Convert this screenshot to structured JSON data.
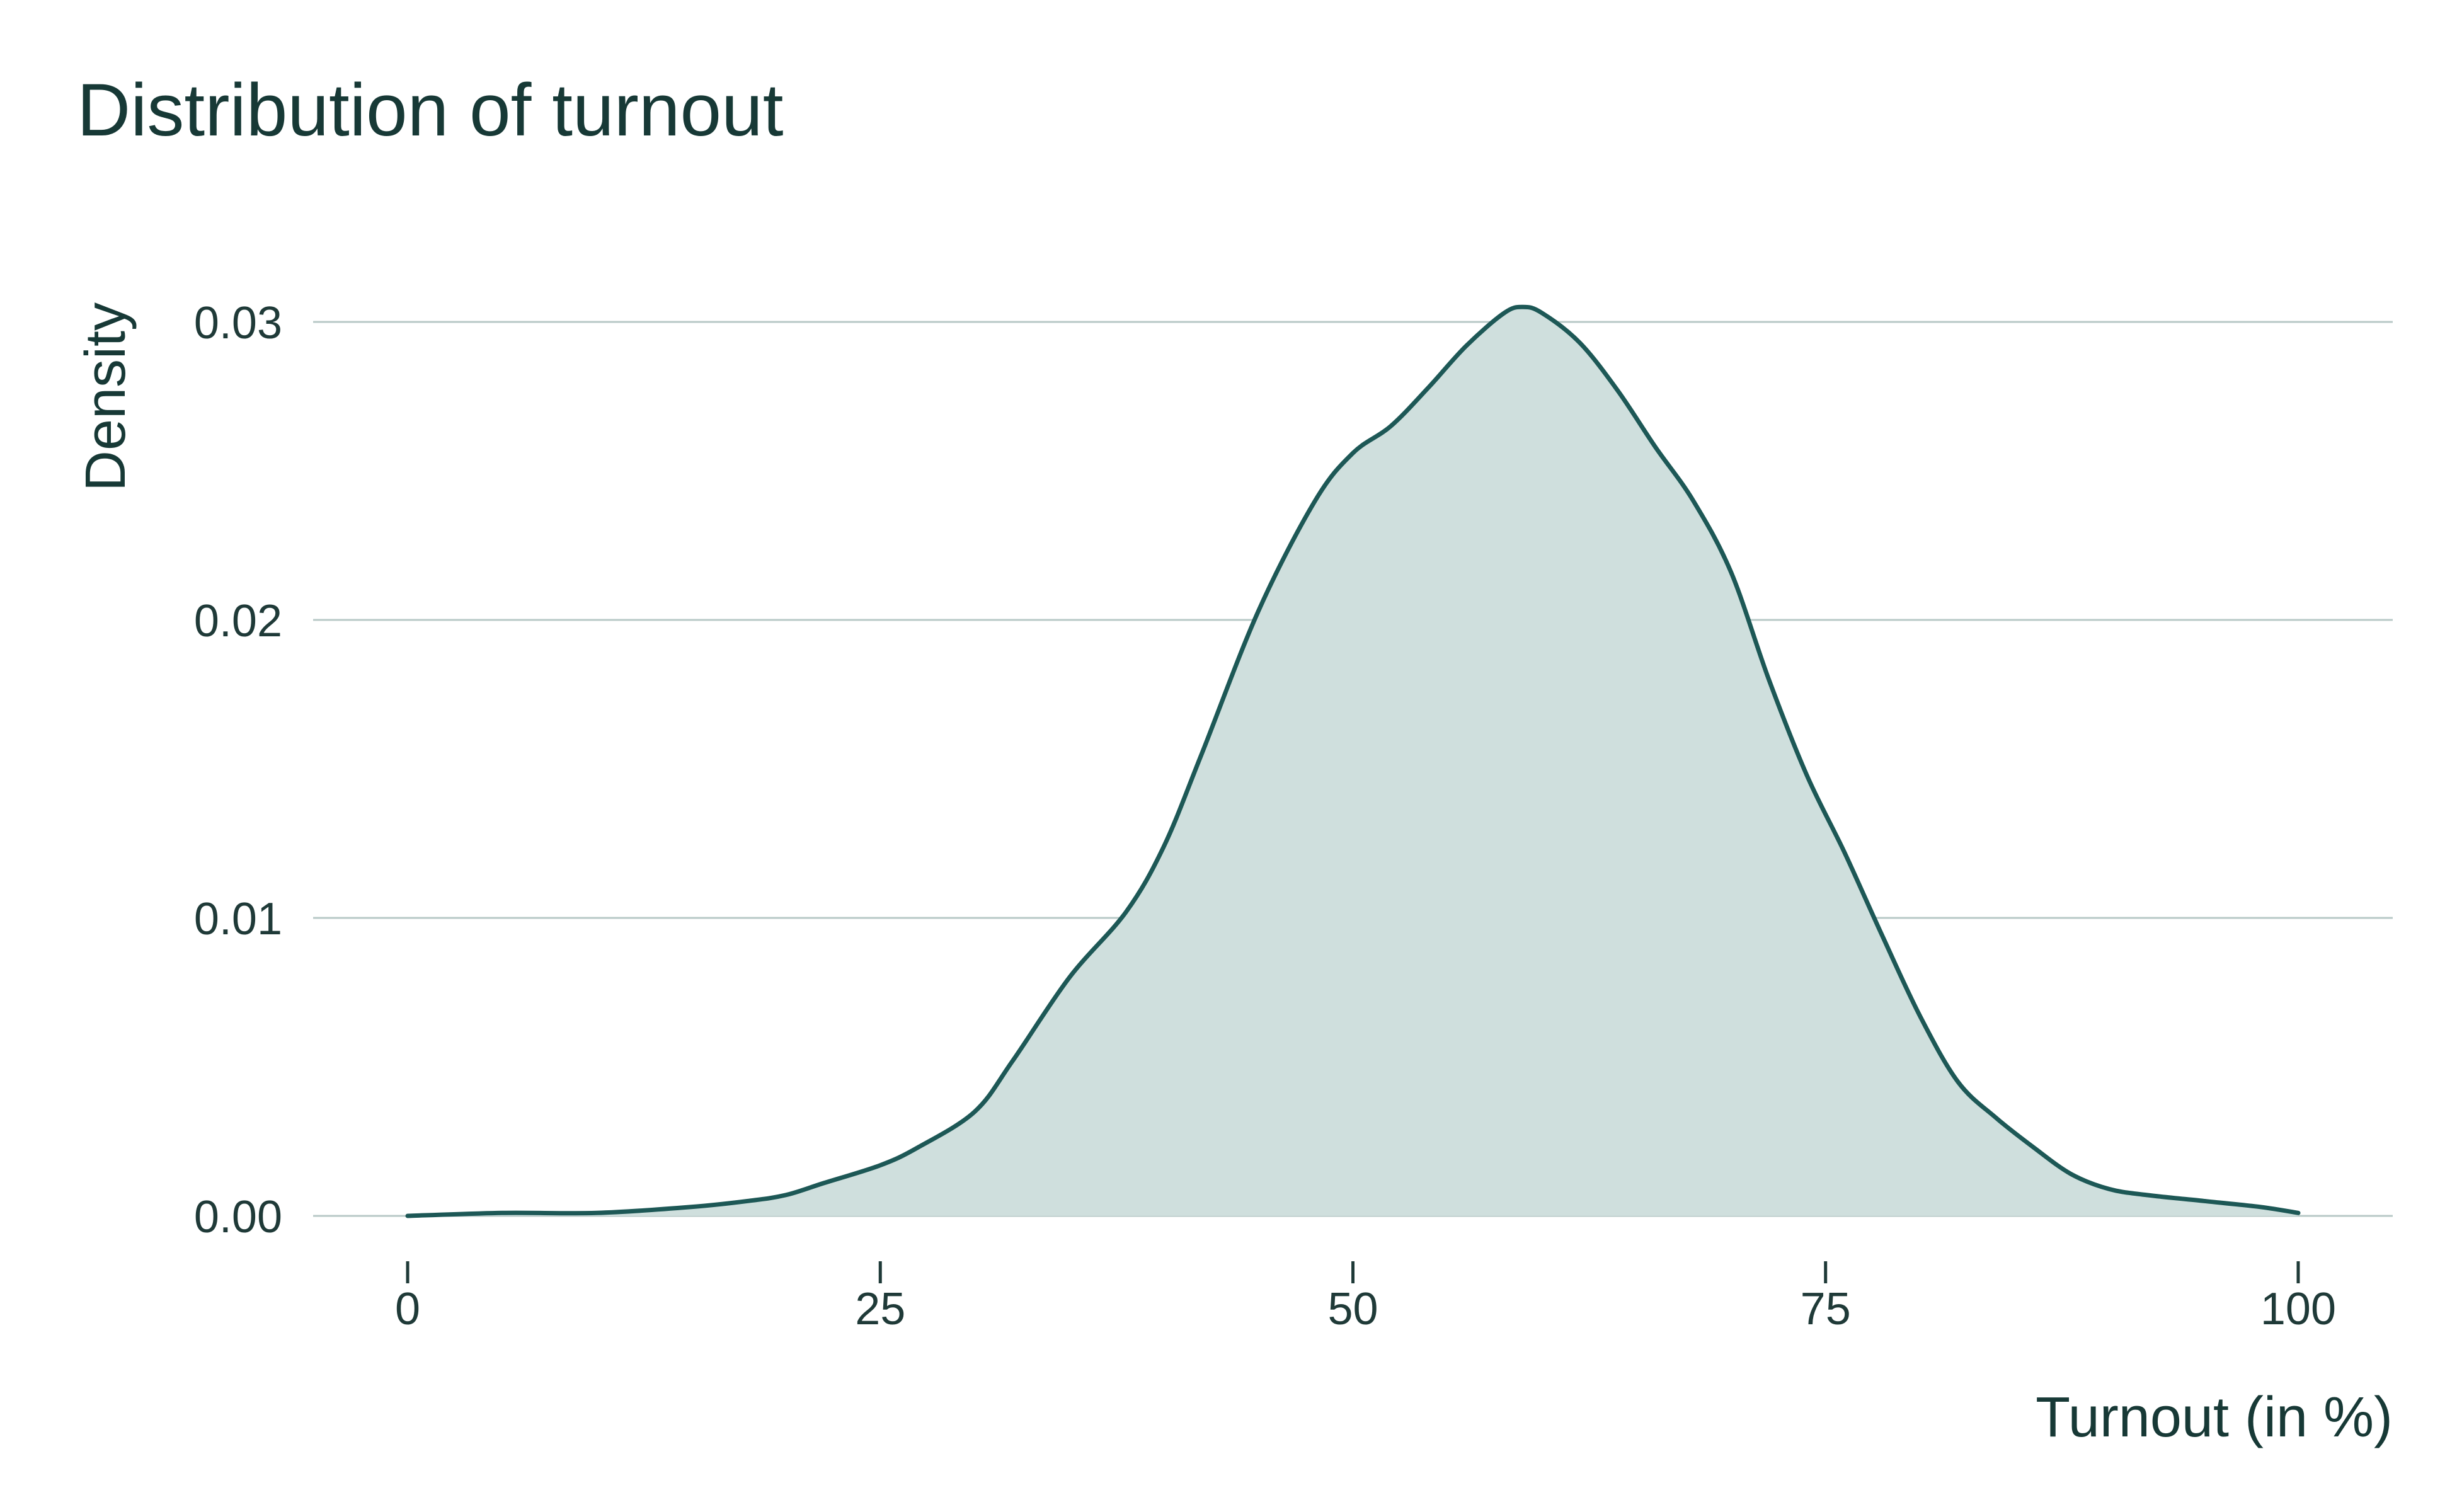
{
  "chart_data": {
    "type": "area",
    "title": "Distribution of turnout",
    "xlabel": "Turnout (in %)",
    "ylabel": "Density",
    "xlim": [
      -5,
      105
    ],
    "ylim": [
      0,
      0.0315
    ],
    "x_ticks": [
      0,
      25,
      50,
      75,
      100
    ],
    "x_tick_labels": [
      "0",
      "25",
      "50",
      "75",
      "100"
    ],
    "y_ticks": [
      0.0,
      0.01,
      0.02,
      0.03
    ],
    "y_tick_labels": [
      "0.00",
      "0.01",
      "0.02",
      "0.03"
    ],
    "grid": "horizontal",
    "legend": "none",
    "colors": {
      "line": "#1d5856",
      "fill": "#cfdfdd",
      "grid": "#b8c9c7",
      "text": "#173936"
    },
    "series": [
      {
        "x": [
          0,
          5,
          10,
          15,
          18,
          20,
          22,
          25,
          27,
          30,
          32,
          35,
          38,
          40,
          42,
          45,
          48,
          50,
          52,
          54,
          56,
          58,
          59,
          60,
          62,
          64,
          66,
          68,
          70,
          72,
          74,
          76,
          78,
          80,
          82,
          84,
          86,
          88,
          90,
          92,
          95,
          98,
          100
        ],
        "y": [
          0.0,
          0.0001,
          0.0001,
          0.0003,
          0.0005,
          0.0007,
          0.0011,
          0.0017,
          0.0023,
          0.0035,
          0.0052,
          0.008,
          0.0102,
          0.0124,
          0.0155,
          0.0203,
          0.024,
          0.0256,
          0.0265,
          0.0278,
          0.0292,
          0.0303,
          0.0305,
          0.0303,
          0.0293,
          0.0277,
          0.0258,
          0.024,
          0.0216,
          0.018,
          0.0148,
          0.0122,
          0.0094,
          0.0067,
          0.0045,
          0.0033,
          0.0023,
          0.0014,
          0.0009,
          0.0007,
          0.0005,
          0.0003,
          0.0001
        ]
      }
    ]
  }
}
